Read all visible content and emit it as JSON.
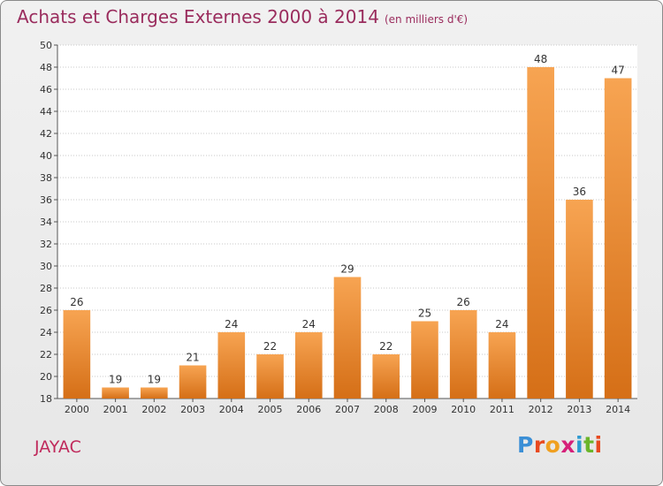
{
  "header": {
    "title": "Achats et Charges Externes 2000 à 2014",
    "subtitle": "(en milliers d'€)"
  },
  "footer": {
    "commune": "JAYAC",
    "logo_letters": [
      "P",
      "r",
      "o",
      "x",
      "i",
      "t",
      "i"
    ]
  },
  "colors": {
    "bar_top": "#f7a452",
    "bar_bottom": "#d56f17",
    "title": "#9a2c5d",
    "commune": "#c02a5c",
    "logo": [
      "#3b8fd6",
      "#e8491f",
      "#f0a020",
      "#d6207a",
      "#2e9ad0",
      "#6bb52a",
      "#e8491f"
    ]
  },
  "chart_data": {
    "type": "bar",
    "title": "Achats et Charges Externes 2000 à 2014",
    "categories": [
      "2000",
      "2001",
      "2002",
      "2003",
      "2004",
      "2005",
      "2006",
      "2007",
      "2008",
      "2009",
      "2010",
      "2011",
      "2012",
      "2013",
      "2014"
    ],
    "values": [
      26,
      19,
      19,
      21,
      24,
      22,
      24,
      29,
      22,
      25,
      26,
      24,
      48,
      36,
      47
    ],
    "xlabel": "",
    "ylabel": "",
    "ylim": [
      18,
      50
    ],
    "yticks": [
      18,
      20,
      22,
      24,
      26,
      28,
      30,
      32,
      34,
      36,
      38,
      40,
      42,
      44,
      46,
      48,
      50
    ],
    "grid": "horizontal-dotted"
  }
}
